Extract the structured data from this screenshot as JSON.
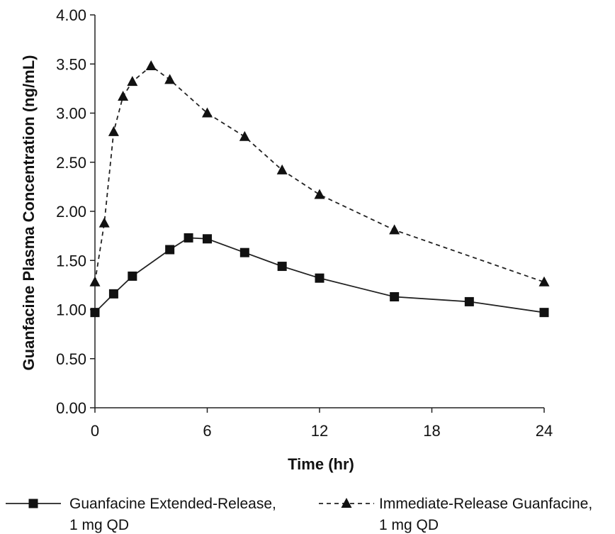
{
  "chart_data": {
    "type": "line",
    "title": "",
    "xlabel": "Time (hr)",
    "ylabel": "Guanfacine Plasma Concentration (ng/mL)",
    "xlim": [
      0,
      24
    ],
    "ylim": [
      0,
      4
    ],
    "x_ticks": [
      "0",
      "6",
      "12",
      "18",
      "24"
    ],
    "y_ticks": [
      "0.00",
      "0.50",
      "1.00",
      "1.50",
      "2.00",
      "2.50",
      "3.00",
      "3.50",
      "4.00"
    ],
    "grid": false,
    "legend_position": "bottom",
    "series": [
      {
        "name_lines": [
          "Guanfacine Extended-Release,",
          "1 mg QD"
        ],
        "line_style": "solid",
        "marker": "square",
        "x": [
          0,
          1,
          2,
          4,
          5,
          6,
          8,
          10,
          12,
          16,
          20,
          24
        ],
        "y": [
          0.97,
          1.16,
          1.34,
          1.61,
          1.73,
          1.72,
          1.58,
          1.44,
          1.32,
          1.13,
          1.08,
          0.97
        ]
      },
      {
        "name_lines": [
          "Immediate-Release Guanfacine,",
          "1 mg QD"
        ],
        "line_style": "dashed",
        "marker": "triangle",
        "x": [
          0,
          0.5,
          1,
          1.5,
          2,
          3,
          4,
          6,
          8,
          10,
          12,
          16,
          24
        ],
        "y": [
          1.28,
          1.88,
          2.81,
          3.17,
          3.32,
          3.48,
          3.34,
          3.0,
          2.76,
          2.42,
          2.17,
          1.81,
          1.28
        ]
      }
    ]
  }
}
